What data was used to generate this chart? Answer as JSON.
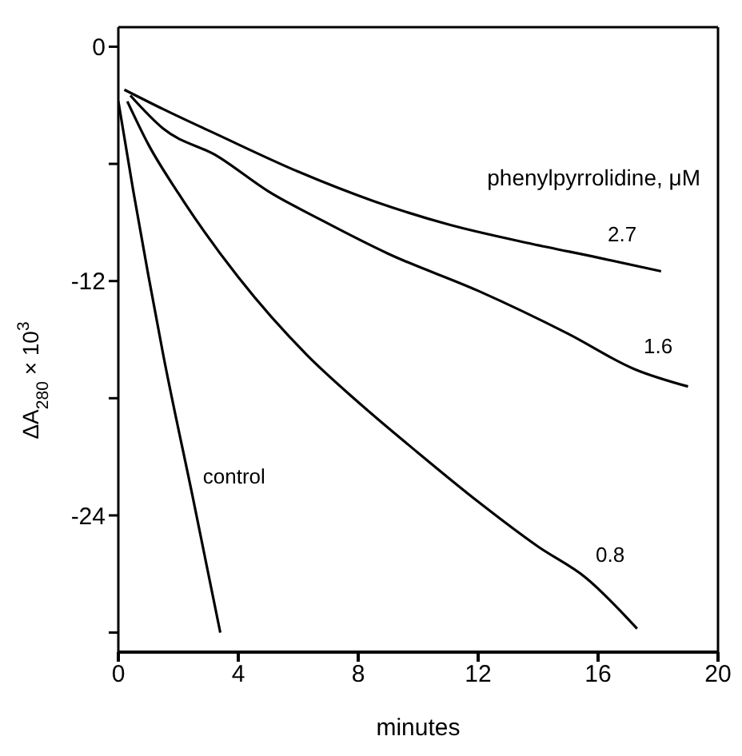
{
  "chart_data": {
    "type": "line",
    "xlabel": "minutes",
    "ylabel": "ΔA$_{280}$ × 10$^{3}$",
    "legend_title": "phenylpyrrolidine, μM",
    "xlim": [
      0,
      20
    ],
    "xticks": [
      0,
      4,
      8,
      12,
      16,
      20
    ],
    "ylim": [
      -31,
      1
    ],
    "yticks": [
      0,
      {
        "value": -6,
        "label": null
      },
      -12,
      {
        "value": -18,
        "label": null
      },
      -24,
      {
        "value": -30,
        "label": null
      }
    ],
    "marker": "none",
    "line_style": "solid",
    "series": [
      {
        "name": "2.7",
        "color": "#000000",
        "x": [
          0.2,
          1.5,
          3.3,
          6,
          8.5,
          11,
          13.8,
          16,
          18.1
        ],
        "values": [
          -2.2,
          -3.2,
          -4.5,
          -6.4,
          -7.9,
          -9.1,
          -10.1,
          -10.8,
          -11.5
        ]
      },
      {
        "name": "1.6",
        "color": "#000000",
        "x": [
          0.4,
          1.5,
          3.3,
          5,
          6.8,
          9,
          12,
          15,
          17.2,
          19
        ],
        "values": [
          -2.5,
          -4.2,
          -5.6,
          -7.4,
          -8.9,
          -10.6,
          -12.5,
          -14.7,
          -16.5,
          -17.4
        ]
      },
      {
        "name": "0.8",
        "color": "#000000",
        "x": [
          0.3,
          1,
          2,
          4,
          6.3,
          8,
          10,
          12,
          14,
          15.6,
          17.3
        ],
        "values": [
          -2.8,
          -5,
          -7.5,
          -11.8,
          -15.8,
          -18.2,
          -20.8,
          -23.3,
          -25.6,
          -27.2,
          -29.8
        ]
      },
      {
        "name": "control",
        "color": "#000000",
        "x": [
          0,
          0.5,
          1,
          1.5,
          2.5,
          3.4
        ],
        "values": [
          -2.8,
          -7.4,
          -11.7,
          -15.8,
          -23.2,
          -30
        ]
      }
    ]
  }
}
